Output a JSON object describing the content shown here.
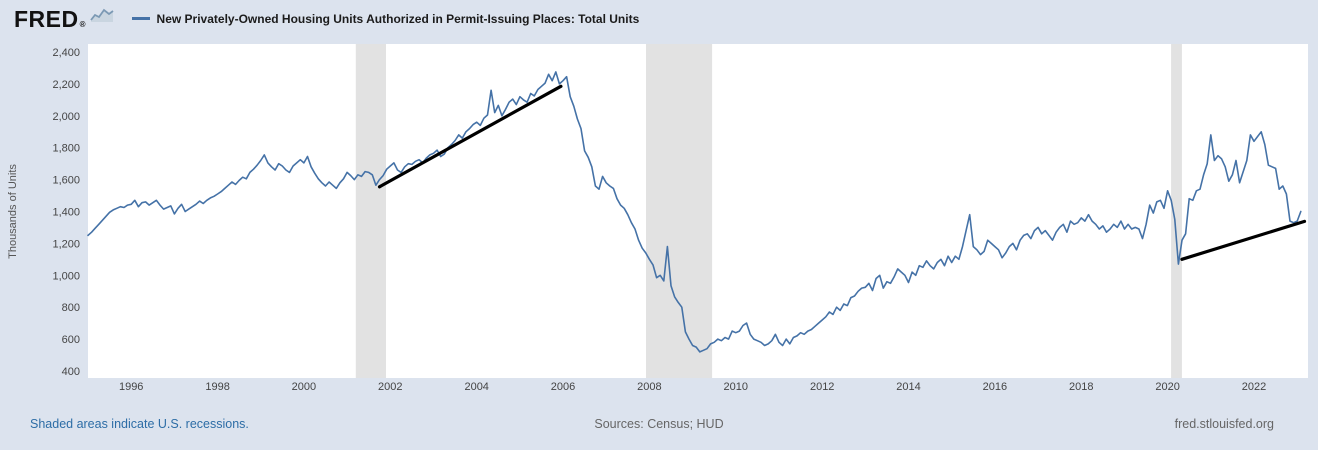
{
  "colors": {
    "page_bg": "#dce3ee",
    "plot_bg": "#ffffff",
    "recession": "#e2e2e2",
    "series_line": "#4572a7",
    "trend_line": "#000000",
    "axis_text": "#444444",
    "link_blue": "#2d6da6",
    "muted_text": "#666666",
    "logo_black": "#121212"
  },
  "header": {
    "logo_text": "FRED",
    "logo_mark": "®",
    "legend_label": "New Privately-Owned Housing Units Authorized in Permit-Issuing Places: Total Units"
  },
  "footer": {
    "recession_note": "Shaded areas indicate U.S. recessions.",
    "sources": "Sources: Census; HUD",
    "site": "fred.stlouisfed.org"
  },
  "chart_data": {
    "type": "line",
    "title": "New Privately-Owned Housing Units Authorized in Permit-Issuing Places: Total Units",
    "xlabel": "",
    "ylabel": "Thousands of Units",
    "x_domain": [
      1995.0,
      2023.25
    ],
    "y_domain": [
      400,
      2400
    ],
    "y_ticks": [
      400,
      600,
      800,
      1000,
      1200,
      1400,
      1600,
      1800,
      2000,
      2200,
      2400
    ],
    "x_ticks": [
      1996,
      1998,
      2000,
      2002,
      2004,
      2006,
      2008,
      2010,
      2012,
      2014,
      2016,
      2018,
      2020,
      2022
    ],
    "grid": false,
    "legend_position": "top-left",
    "recessions": [
      [
        2001.2,
        2001.9
      ],
      [
        2007.92,
        2009.45
      ],
      [
        2020.08,
        2020.33
      ]
    ],
    "series": [
      {
        "name": "New Privately-Owned Housing Units Authorized in Permit-Issuing Places: Total Units",
        "units": "Thousands of Units",
        "frequency": "monthly",
        "start_year": 1995.0,
        "step_months": 1,
        "values": [
          1250,
          1270,
          1295,
          1320,
          1345,
          1370,
          1395,
          1410,
          1420,
          1430,
          1425,
          1440,
          1445,
          1470,
          1430,
          1455,
          1460,
          1440,
          1455,
          1470,
          1440,
          1415,
          1425,
          1435,
          1385,
          1420,
          1445,
          1400,
          1415,
          1430,
          1445,
          1465,
          1450,
          1470,
          1485,
          1495,
          1510,
          1525,
          1545,
          1565,
          1585,
          1570,
          1595,
          1615,
          1605,
          1645,
          1665,
          1690,
          1720,
          1755,
          1705,
          1680,
          1660,
          1700,
          1685,
          1660,
          1645,
          1685,
          1705,
          1725,
          1705,
          1745,
          1680,
          1640,
          1605,
          1580,
          1560,
          1585,
          1565,
          1545,
          1580,
          1605,
          1645,
          1625,
          1600,
          1630,
          1620,
          1650,
          1645,
          1630,
          1565,
          1600,
          1625,
          1665,
          1685,
          1705,
          1660,
          1645,
          1680,
          1700,
          1695,
          1715,
          1725,
          1705,
          1735,
          1755,
          1765,
          1785,
          1745,
          1760,
          1800,
          1820,
          1845,
          1880,
          1860,
          1900,
          1920,
          1945,
          1960,
          1940,
          1985,
          2005,
          2160,
          2020,
          2065,
          2000,
          2040,
          2085,
          2105,
          2070,
          2120,
          2100,
          2085,
          2140,
          2125,
          2165,
          2185,
          2205,
          2260,
          2220,
          2275,
          2200,
          2220,
          2245,
          2120,
          2060,
          1980,
          1920,
          1780,
          1740,
          1680,
          1560,
          1540,
          1620,
          1580,
          1560,
          1545,
          1480,
          1440,
          1420,
          1380,
          1330,
          1290,
          1220,
          1170,
          1140,
          1100,
          1065,
          985,
          1000,
          965,
          1180,
          935,
          865,
          830,
          800,
          645,
          600,
          560,
          550,
          520,
          530,
          540,
          570,
          580,
          600,
          590,
          610,
          600,
          650,
          640,
          650,
          685,
          700,
          630,
          600,
          590,
          580,
          560,
          570,
          590,
          630,
          580,
          560,
          600,
          570,
          610,
          620,
          640,
          630,
          650,
          660,
          680,
          700,
          720,
          740,
          770,
          755,
          800,
          780,
          820,
          810,
          860,
          870,
          900,
          920,
          925,
          950,
          905,
          980,
          1000,
          920,
          960,
          950,
          990,
          1040,
          1020,
          1000,
          955,
          1020,
          1000,
          1060,
          1050,
          1090,
          1060,
          1040,
          1080,
          1100,
          1060,
          1120,
          1080,
          1120,
          1100,
          1180,
          1280,
          1380,
          1180,
          1160,
          1130,
          1150,
          1220,
          1200,
          1180,
          1160,
          1110,
          1140,
          1180,
          1200,
          1160,
          1220,
          1250,
          1260,
          1230,
          1280,
          1300,
          1260,
          1280,
          1250,
          1220,
          1270,
          1300,
          1320,
          1270,
          1340,
          1320,
          1330,
          1360,
          1340,
          1380,
          1340,
          1320,
          1290,
          1310,
          1270,
          1290,
          1320,
          1300,
          1340,
          1290,
          1320,
          1290,
          1300,
          1290,
          1230,
          1320,
          1440,
          1390,
          1460,
          1470,
          1420,
          1530,
          1470,
          1350,
          1070,
          1220,
          1260,
          1480,
          1470,
          1530,
          1540,
          1630,
          1700,
          1880,
          1720,
          1750,
          1730,
          1680,
          1590,
          1630,
          1720,
          1580,
          1650,
          1720,
          1880,
          1840,
          1870,
          1900,
          1820,
          1690,
          1680,
          1670,
          1540,
          1560,
          1510,
          1340,
          1330,
          1340,
          1400
        ]
      }
    ],
    "annotations": {
      "trend_lines": [
        {
          "x1": 2001.75,
          "y1": 1555,
          "x2": 2005.95,
          "y2": 2185
        },
        {
          "x1": 2020.33,
          "y1": 1100,
          "x2": 2023.17,
          "y2": 1338
        }
      ]
    }
  }
}
